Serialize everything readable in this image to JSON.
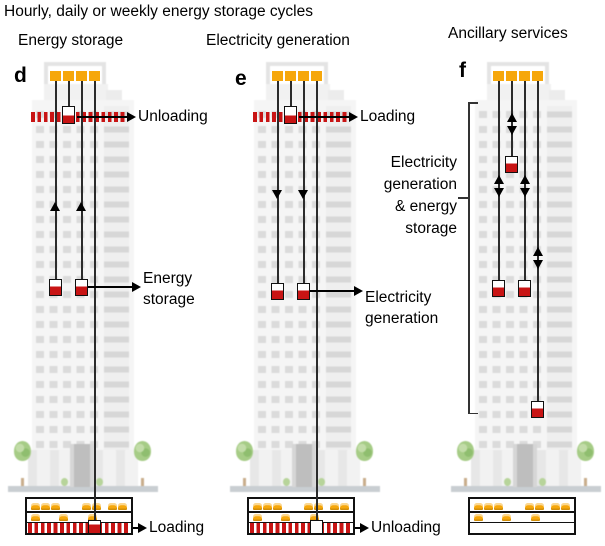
{
  "title": "Hourly, daily or weekly energy storage cycles",
  "panels": {
    "d": {
      "letter": "d",
      "subtitle": "Energy storage",
      "top_label": "Unloading",
      "mid_label": {
        "line1": "Energy",
        "line2": "storage"
      },
      "bottom_label": "Loading"
    },
    "e": {
      "letter": "e",
      "subtitle": "Electricity generation",
      "top_label": "Loading",
      "mid_label": {
        "line1": "Electricity",
        "line2": "generation"
      },
      "bottom_label": "Unloading"
    },
    "f": {
      "letter": "f",
      "subtitle": "Ancillary services",
      "side_label": {
        "line1": "Electricity",
        "line2": "generation",
        "line3": "& energy",
        "line4": "storage"
      }
    }
  },
  "colors": {
    "motor_yellow": "#F6A70B",
    "weight_red": "#C81414",
    "building_face": "#F5F5F5",
    "window_gray": "#DBDBDB",
    "band_gray": "#D7D7D7",
    "ground_gray": "#C9CED2",
    "tree_green": "#A6CC86",
    "annotation_black": "#000000"
  },
  "icons": {
    "motor": "yellow-square",
    "counterweight": "red-dash-block",
    "elevator_car": "outlined-box-with-red-fill",
    "robot_vehicle": "small-yellow-car",
    "arrow": "black-triangle",
    "double_arrow": "up-down-black-triangles",
    "tree": "green-blob",
    "bracket": "thin-square-bracket"
  }
}
